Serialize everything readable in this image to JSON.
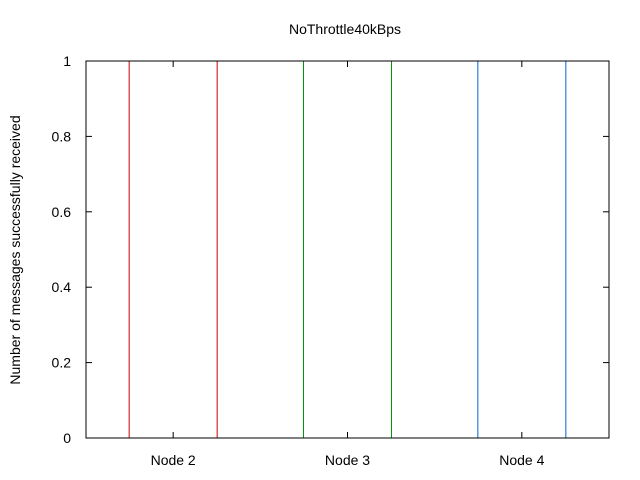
{
  "chart_data": {
    "type": "bar",
    "title": "NoThrottle40kBps",
    "xlabel": "",
    "ylabel": "Number of messages successfully received",
    "categories": [
      "Node 2",
      "Node 3",
      "Node 4"
    ],
    "values": [
      1,
      1,
      1
    ],
    "colors": [
      "#cc0000",
      "#009900",
      "#0066cc"
    ],
    "ylim": [
      0,
      1
    ],
    "yticks": [
      "0",
      "0.2",
      "0.4",
      "0.6",
      "0.8",
      "1"
    ],
    "ytick_values": [
      0,
      0.2,
      0.4,
      0.6,
      0.8,
      1
    ],
    "bar_fill": "none",
    "grid": false,
    "legend": "none"
  }
}
